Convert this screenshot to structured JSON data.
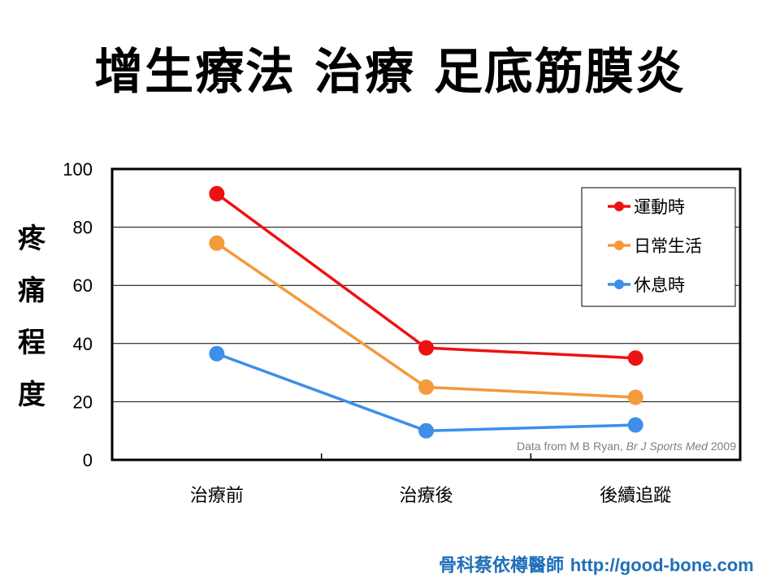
{
  "title": "增生療法 治療 足底筋膜炎",
  "credit": {
    "author": "骨科蔡依樽醫師",
    "url": "http://good-bone.com"
  },
  "source": {
    "prefix": "Data from M B Ryan, ",
    "journal": "Br J Sports Med",
    "year": " 2009"
  },
  "chart_data": {
    "type": "line",
    "title": "增生療法 治療 足底筋膜炎",
    "ylabel_chars": [
      "疼",
      "痛",
      "程",
      "度"
    ],
    "categories": [
      "治療前",
      "治療後",
      "後續追蹤"
    ],
    "ylim": [
      0,
      100
    ],
    "yticks": [
      0,
      20,
      40,
      60,
      80,
      100
    ],
    "grid": true,
    "legend": "top-right",
    "series": [
      {
        "name": "運動時",
        "color": "#ee1111",
        "values": [
          91.5,
          38.5,
          35
        ]
      },
      {
        "name": "日常生活",
        "color": "#f39a3a",
        "values": [
          74.5,
          25,
          21.5
        ]
      },
      {
        "name": "休息時",
        "color": "#3d8fe8",
        "values": [
          36.5,
          10,
          12
        ]
      }
    ]
  }
}
